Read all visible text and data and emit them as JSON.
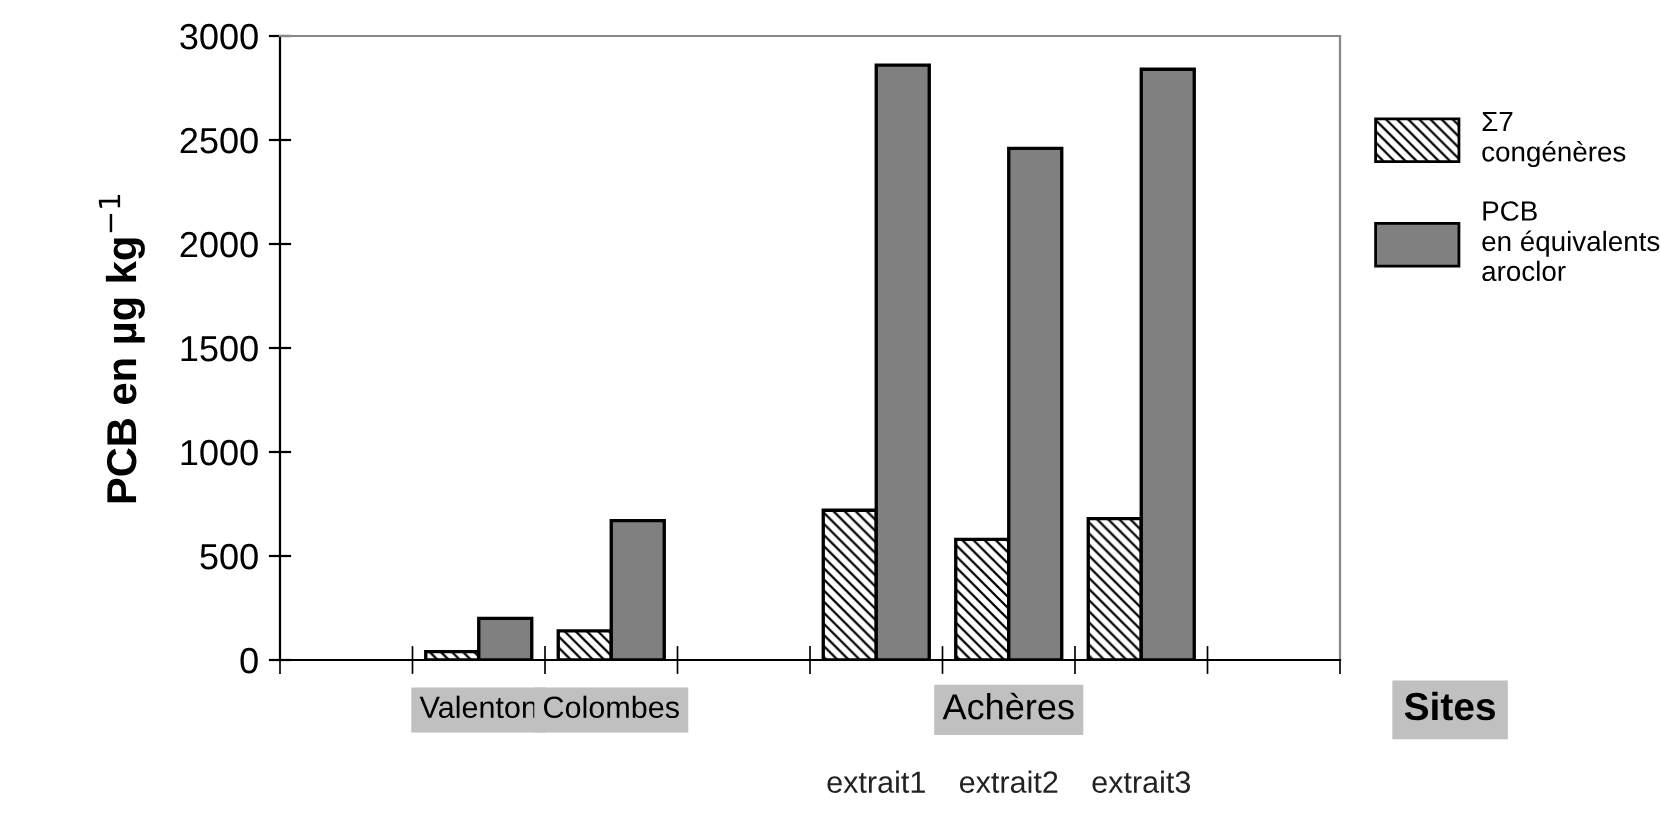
{
  "chart_data": {
    "type": "bar",
    "ylabel": "PCB en µg kg$^{−1}$",
    "xlabel": "Sites",
    "categories": [
      null,
      "Valenton",
      "Colombes",
      null,
      "extrait1",
      "extrait2",
      "extrait3",
      null
    ],
    "series": [
      {
        "name": "Σ7\ncongénères",
        "color": "#000000",
        "values": [
          null,
          40,
          140,
          null,
          720,
          580,
          680,
          null
        ]
      },
      {
        "name": "PCB\nen équivalents\naroclor",
        "color": "#808080",
        "values": [
          null,
          200,
          670,
          null,
          2860,
          2460,
          2840,
          null
        ]
      }
    ],
    "annotations": [
      "Achères"
    ],
    "ylim": [
      0,
      3000
    ],
    "yticks": [
      0,
      500,
      1000,
      1500,
      2000,
      2500,
      3000
    ],
    "grid": false,
    "legend": "right"
  }
}
